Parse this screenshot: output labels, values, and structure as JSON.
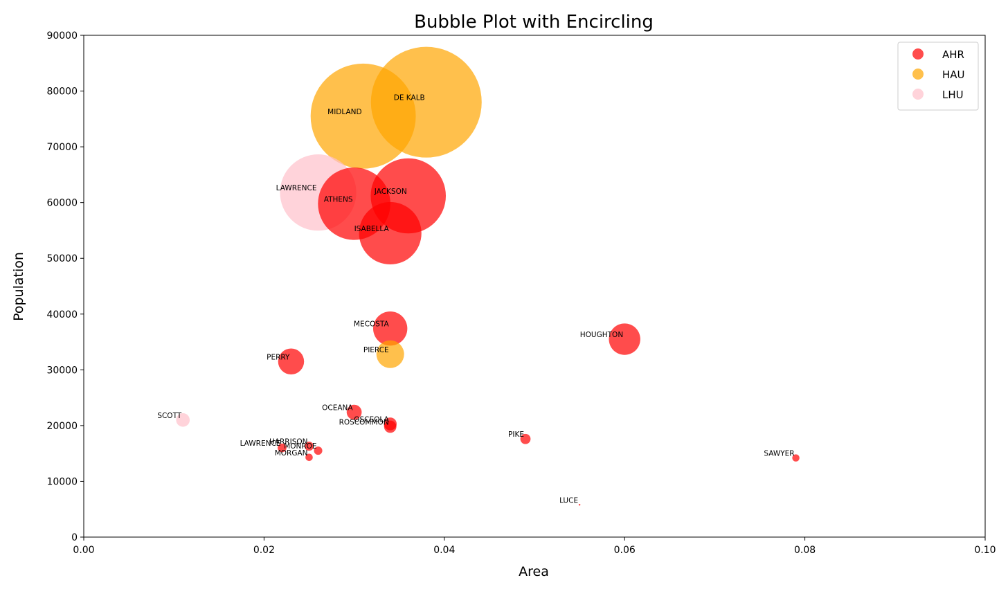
{
  "chart_data": {
    "type": "scatter",
    "title": "Bubble Plot with Encircling",
    "xlabel": "Area",
    "ylabel": "Population",
    "xlim": [
      0,
      0.1
    ],
    "ylim": [
      0,
      90000
    ],
    "xticks": [
      "0.00",
      "0.02",
      "0.04",
      "0.06",
      "0.08",
      "0.10"
    ],
    "yticks": [
      "0",
      "10000",
      "20000",
      "30000",
      "40000",
      "50000",
      "60000",
      "70000",
      "80000",
      "90000"
    ],
    "grid": false,
    "legend_position": "top-right",
    "bubble_size_encodes": "population",
    "categories": [
      {
        "name": "AHR",
        "color": "#ff0000"
      },
      {
        "name": "HAU",
        "color": "#ffa500"
      },
      {
        "name": "LHU",
        "color": "#ffc0cb"
      }
    ],
    "points": [
      {
        "label": "MIDLAND",
        "category": "HAU",
        "x": 0.031,
        "y": 75500
      },
      {
        "label": "DE KALB",
        "category": "HAU",
        "x": 0.038,
        "y": 78000
      },
      {
        "label": "LAWRENCE",
        "category": "LHU",
        "x": 0.026,
        "y": 61800
      },
      {
        "label": "ATHENS",
        "category": "AHR",
        "x": 0.03,
        "y": 59800
      },
      {
        "label": "JACKSON",
        "category": "AHR",
        "x": 0.036,
        "y": 61200
      },
      {
        "label": "ISABELLA",
        "category": "AHR",
        "x": 0.034,
        "y": 54500
      },
      {
        "label": "MECOSTA",
        "category": "AHR",
        "x": 0.034,
        "y": 37400
      },
      {
        "label": "PIERCE",
        "category": "HAU",
        "x": 0.034,
        "y": 32800
      },
      {
        "label": "HOUGHTON",
        "category": "AHR",
        "x": 0.06,
        "y": 35500
      },
      {
        "label": "PERRY",
        "category": "AHR",
        "x": 0.023,
        "y": 31500
      },
      {
        "label": "OCEANA",
        "category": "AHR",
        "x": 0.03,
        "y": 22400
      },
      {
        "label": "OSCEOLA",
        "category": "AHR",
        "x": 0.034,
        "y": 20300
      },
      {
        "label": "ROSCOMMON",
        "category": "AHR",
        "x": 0.034,
        "y": 19800
      },
      {
        "label": "SCOTT",
        "category": "LHU",
        "x": 0.011,
        "y": 21000
      },
      {
        "label": "PIKE",
        "category": "AHR",
        "x": 0.049,
        "y": 17600
      },
      {
        "label": "SAWYER",
        "category": "AHR",
        "x": 0.079,
        "y": 14200
      },
      {
        "label": "LAWRENCE",
        "category": "AHR",
        "x": 0.022,
        "y": 16000
      },
      {
        "label": "HARRISON",
        "category": "AHR",
        "x": 0.025,
        "y": 16300
      },
      {
        "label": "MONROE",
        "category": "AHR",
        "x": 0.026,
        "y": 15500
      },
      {
        "label": "MORGAN",
        "category": "AHR",
        "x": 0.025,
        "y": 14300
      },
      {
        "label": "LUCE",
        "category": "AHR",
        "x": 0.055,
        "y": 5800
      }
    ]
  }
}
